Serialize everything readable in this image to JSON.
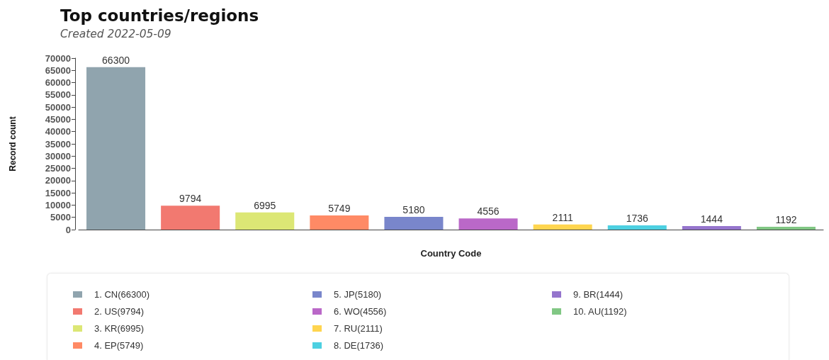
{
  "chart_data": {
    "type": "bar",
    "title": "Top countries/regions",
    "subtitle": "Created 2022-05-09",
    "xlabel": "Country Code",
    "ylabel": "Record count",
    "categories": [
      null,
      null,
      null,
      null,
      null,
      null,
      null,
      null,
      null,
      null
    ],
    "series": [
      {
        "name": "1. CN(66300)",
        "color": "#90a4ae",
        "values": [
          66300,
          null,
          null,
          null,
          null,
          null,
          null,
          null,
          null,
          null
        ]
      },
      {
        "name": "2. US(9794)",
        "color": "#f27970",
        "values": [
          null,
          9794,
          null,
          null,
          null,
          null,
          null,
          null,
          null,
          null
        ]
      },
      {
        "name": "3. KR(6995)",
        "color": "#dce775",
        "values": [
          null,
          null,
          6995,
          null,
          null,
          null,
          null,
          null,
          null,
          null
        ]
      },
      {
        "name": "4. EP(5749)",
        "color": "#ff8a65",
        "values": [
          null,
          null,
          null,
          5749,
          null,
          null,
          null,
          null,
          null,
          null
        ]
      },
      {
        "name": "5. JP(5180)",
        "color": "#7986cb",
        "values": [
          null,
          null,
          null,
          null,
          5180,
          null,
          null,
          null,
          null,
          null
        ]
      },
      {
        "name": "6. WO(4556)",
        "color": "#ba68c8",
        "values": [
          null,
          null,
          null,
          null,
          null,
          4556,
          null,
          null,
          null,
          null
        ]
      },
      {
        "name": "7. RU(2111)",
        "color": "#ffd54f",
        "values": [
          null,
          null,
          null,
          null,
          null,
          null,
          2111,
          null,
          null,
          null
        ]
      },
      {
        "name": "8. DE(1736)",
        "color": "#4dd0e1",
        "values": [
          null,
          null,
          null,
          null,
          null,
          null,
          null,
          1736,
          null,
          null
        ]
      },
      {
        "name": "9. BR(1444)",
        "color": "#9575cd",
        "values": [
          null,
          null,
          null,
          null,
          null,
          null,
          null,
          null,
          1444,
          null
        ]
      },
      {
        "name": "10. AU(1192)",
        "color": "#81c784",
        "values": [
          null,
          null,
          null,
          null,
          null,
          null,
          null,
          null,
          null,
          1192
        ]
      }
    ],
    "ylim": [
      0,
      70000
    ],
    "yticks": [
      0,
      5000,
      10000,
      15000,
      20000,
      25000,
      30000,
      35000,
      40000,
      45000,
      50000,
      55000,
      60000,
      65000,
      70000
    ],
    "data_labels": true,
    "legend": "bottom",
    "grid": false
  }
}
